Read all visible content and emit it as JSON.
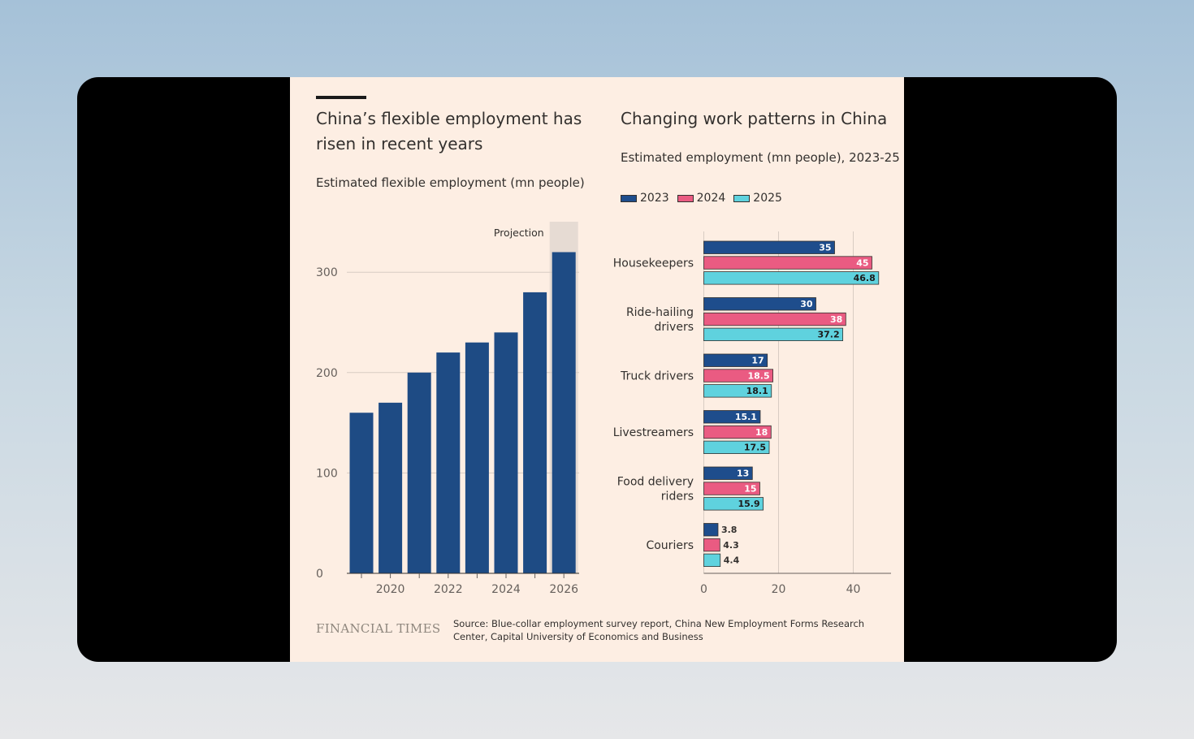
{
  "colors": {
    "c2023": "#1e4d8c",
    "c2024": "#ea5b82",
    "c2025": "#5fd2de",
    "bar_left": "#1e4b84",
    "projection_shade": "#e6dbd3"
  },
  "left": {
    "title": "China’s flexible employment has risen in recent years",
    "subtitle": "Estimated flexible employment (mn people)",
    "projection_label": "Projection"
  },
  "right": {
    "title": "Changing work patterns in China",
    "subtitle": "Estimated employment (mn people), 2023-25",
    "legend": [
      "2023",
      "2024",
      "2025"
    ]
  },
  "footer": {
    "logo": "FINANCIAL TIMES",
    "source": "Source: Blue-collar employment survey report, China New Employment Forms Research Center, Capital University of Economics and Business"
  },
  "chart_data": [
    {
      "type": "bar",
      "title": "China’s flexible employment has risen in recent years",
      "subtitle": "Estimated flexible employment (mn people)",
      "x": [
        2019,
        2020,
        2021,
        2022,
        2023,
        2024,
        2025,
        2026
      ],
      "values": [
        160,
        170,
        200,
        220,
        230,
        240,
        280,
        320
      ],
      "xticks": [
        "2020",
        "2022",
        "2024",
        "2026"
      ],
      "yticks": [
        "0",
        "100",
        "200",
        "300"
      ],
      "ylim": [
        0,
        340
      ],
      "grid": true,
      "annotation": "Projection"
    },
    {
      "type": "bar",
      "orientation": "horizontal",
      "title": "Changing work patterns in China",
      "subtitle": "Estimated employment (mn people), 2023-25",
      "categories": [
        "Housekeepers",
        "Ride-hailing drivers",
        "Truck drivers",
        "Livestreamers",
        "Food delivery riders",
        "Couriers"
      ],
      "series": [
        {
          "name": "2023",
          "values": [
            35,
            30,
            17,
            15.1,
            13,
            3.8
          ],
          "labels": [
            "35",
            "30",
            "17",
            "15.1",
            "13",
            "3.8"
          ]
        },
        {
          "name": "2024",
          "values": [
            45,
            38,
            18.5,
            18,
            15,
            4.3
          ],
          "labels": [
            "45",
            "38",
            "18.5",
            "18",
            "15",
            "4.3"
          ]
        },
        {
          "name": "2025",
          "values": [
            46.8,
            37.2,
            18.1,
            17.5,
            15.9,
            4.4
          ],
          "labels": [
            "46.8",
            "37.2",
            "18.1",
            "17.5",
            "15.9",
            "4.4"
          ]
        }
      ],
      "xticks": [
        "0",
        "20",
        "40"
      ],
      "xlim": [
        0,
        50
      ],
      "grid": true,
      "legend": "top-left"
    }
  ]
}
